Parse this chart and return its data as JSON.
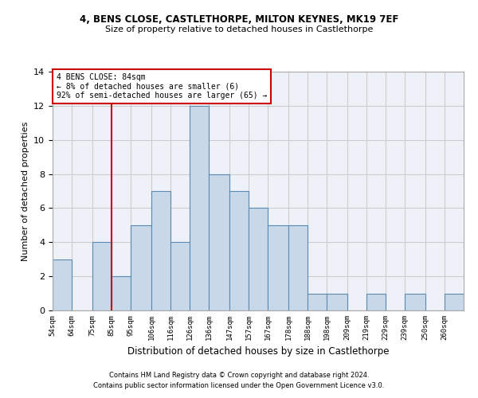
{
  "title1": "4, BENS CLOSE, CASTLETHORPE, MILTON KEYNES, MK19 7EF",
  "title2": "Size of property relative to detached houses in Castlethorpe",
  "xlabel": "Distribution of detached houses by size in Castlethorpe",
  "ylabel": "Number of detached properties",
  "footer1": "Contains HM Land Registry data © Crown copyright and database right 2024.",
  "footer2": "Contains public sector information licensed under the Open Government Licence v3.0.",
  "bin_labels": [
    "54sqm",
    "64sqm",
    "75sqm",
    "85sqm",
    "95sqm",
    "106sqm",
    "116sqm",
    "126sqm",
    "136sqm",
    "147sqm",
    "157sqm",
    "167sqm",
    "178sqm",
    "188sqm",
    "198sqm",
    "209sqm",
    "219sqm",
    "229sqm",
    "239sqm",
    "250sqm",
    "260sqm"
  ],
  "bar_values": [
    3,
    0,
    4,
    2,
    5,
    7,
    4,
    12,
    8,
    7,
    6,
    5,
    5,
    1,
    1,
    0,
    1,
    0,
    1,
    0,
    1
  ],
  "bar_color": "#c8d8e8",
  "bar_edge_color": "#5a8ab0",
  "bar_edge_width": 0.8,
  "property_line_color": "#cc0000",
  "annotation_text": "4 BENS CLOSE: 84sqm\n← 8% of detached houses are smaller (6)\n92% of semi-detached houses are larger (65) →",
  "annotation_box_color": "#cc0000",
  "ylim": [
    0,
    14
  ],
  "yticks": [
    0,
    2,
    4,
    6,
    8,
    10,
    12,
    14
  ],
  "grid_color": "#cccccc",
  "bg_color": "#eef2f8",
  "bin_edges": [
    54,
    64,
    75,
    85,
    95,
    106,
    116,
    126,
    136,
    147,
    157,
    167,
    178,
    188,
    198,
    209,
    219,
    229,
    239,
    250,
    260,
    270
  ],
  "property_line_bin_idx": 3
}
